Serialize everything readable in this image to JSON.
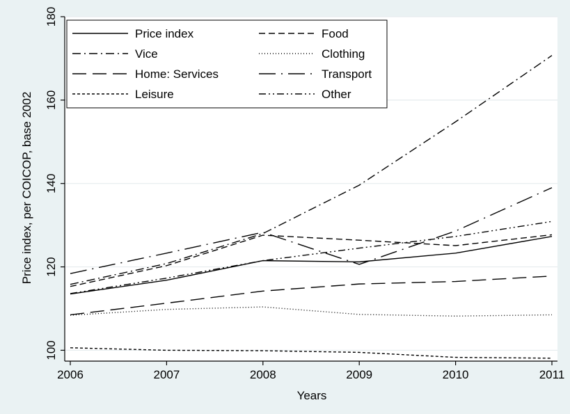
{
  "chart_data": {
    "type": "line",
    "title": "",
    "xlabel": "Years",
    "ylabel": "Price index, per COICOP, base 2002",
    "x": [
      2006,
      2007,
      2008,
      2009,
      2010,
      2011
    ],
    "xlim": [
      2006,
      2011
    ],
    "ylim": [
      97.4,
      180
    ],
    "yticks": [
      100,
      120,
      140,
      160,
      180
    ],
    "xticks": [
      2006,
      2007,
      2008,
      2009,
      2010,
      2011
    ],
    "grid": "horizontal",
    "legend": "top-left, inside, two columns",
    "line_color": "#000000",
    "series": [
      {
        "name": "Price index",
        "dash": "solid",
        "values": [
          113.5,
          116.8,
          121.5,
          121.2,
          123.3,
          127.3
        ]
      },
      {
        "name": "Food",
        "dash": "dashed",
        "values": [
          115.3,
          120.3,
          127.6,
          126.4,
          125.1,
          127.7
        ]
      },
      {
        "name": "Vice",
        "dash": "dash-dot",
        "values": [
          115.8,
          120.8,
          128.0,
          139.6,
          154.8,
          170.7
        ]
      },
      {
        "name": "Clothing",
        "dash": "dotted",
        "values": [
          108.4,
          109.8,
          110.4,
          108.6,
          108.2,
          108.5
        ]
      },
      {
        "name": "Home: Services",
        "dash": "long-dash",
        "values": [
          108.5,
          111.3,
          114.2,
          115.9,
          116.5,
          117.8
        ]
      },
      {
        "name": "Transport",
        "dash": "long-dash-dot",
        "values": [
          118.4,
          123.3,
          128.3,
          120.6,
          128.6,
          139.0
        ]
      },
      {
        "name": "Leisure",
        "dash": "short-dash",
        "values": [
          100.6,
          100.0,
          99.9,
          99.5,
          98.3,
          98.1
        ]
      },
      {
        "name": "Other",
        "dash": "dash-dot-dot",
        "values": [
          113.6,
          117.3,
          121.5,
          124.5,
          127.3,
          130.9
        ]
      }
    ]
  }
}
